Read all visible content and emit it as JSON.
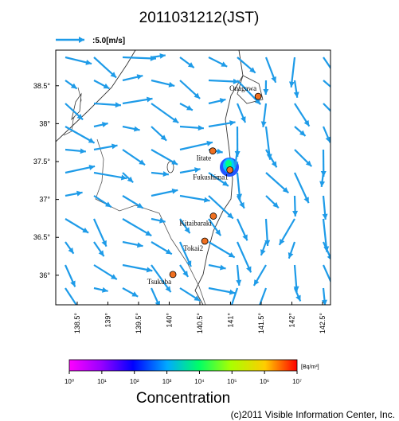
{
  "title": "2011031212(JST)",
  "wind_legend": ":5.0[m/s]",
  "map": {
    "lonlim": [
      138.15,
      142.63
    ],
    "latlim": [
      35.61,
      38.97
    ],
    "lon_ticks": [
      {
        "value": 138.5,
        "label": "138.5°"
      },
      {
        "value": 139,
        "label": "139°"
      },
      {
        "value": 139.5,
        "label": "139.5°"
      },
      {
        "value": 140,
        "label": "140°"
      },
      {
        "value": 140.5,
        "label": "140.5°"
      },
      {
        "value": 141,
        "label": "141°"
      },
      {
        "value": 141.5,
        "label": "141.5°"
      },
      {
        "value": 142,
        "label": "142°"
      },
      {
        "value": 142.5,
        "label": "142.5°"
      }
    ],
    "lat_ticks": [
      {
        "value": 36,
        "label": "36°"
      },
      {
        "value": 36.5,
        "label": "36.5°"
      },
      {
        "value": 37,
        "label": "37°"
      },
      {
        "value": 37.5,
        "label": "37.5°"
      },
      {
        "value": 38,
        "label": "38°"
      },
      {
        "value": 38.5,
        "label": "38.5°"
      }
    ],
    "sites": [
      {
        "label": "Onagawa",
        "lon": 141.45,
        "lat": 38.36
      },
      {
        "label": "Iitate",
        "lon": 140.71,
        "lat": 37.64
      },
      {
        "label": "Fukushima1",
        "lon": 140.99,
        "lat": 37.39
      },
      {
        "label": "Kitaibaraki",
        "lon": 140.72,
        "lat": 36.78
      },
      {
        "label": "Tokai2",
        "lon": 140.58,
        "lat": 36.45
      },
      {
        "label": "Tsukuba",
        "lon": 140.06,
        "lat": 36.01
      }
    ]
  },
  "colorbar": {
    "unit": "[Bq/m³]",
    "title": "Concentration",
    "ticks": [
      {
        "value": 1,
        "label": "10⁰"
      },
      {
        "value": 10,
        "label": "10¹"
      },
      {
        "value": 100,
        "label": "10²"
      },
      {
        "value": 1000,
        "label": "10³"
      },
      {
        "value": 10000,
        "label": "10⁴"
      },
      {
        "value": 100000,
        "label": "10⁵"
      },
      {
        "value": 1000000,
        "label": "10⁶"
      },
      {
        "value": 10000000,
        "label": "10⁷"
      }
    ]
  },
  "copyright": "(c)2011 Visible Information Center, Inc."
}
